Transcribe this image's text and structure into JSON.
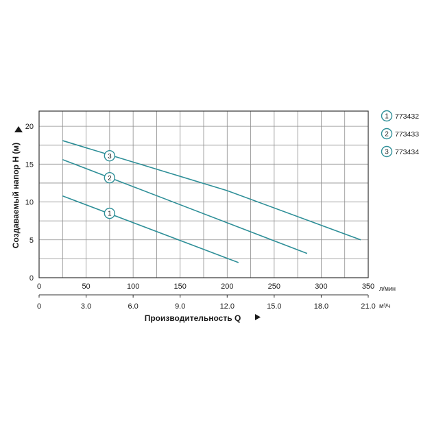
{
  "chart_data": {
    "type": "line",
    "ylabel": "Создаваемый напор H (м)",
    "xlabel": "Производительность Q",
    "x_unit": "л/мин",
    "x2_unit": "м³/ч",
    "xlim": [
      0,
      350
    ],
    "ylim": [
      0,
      22
    ],
    "x_ticks": [
      "0",
      "50",
      "100",
      "150",
      "200",
      "250",
      "300",
      "350"
    ],
    "x2_ticks": [
      "0",
      "3.0",
      "6.0",
      "9.0",
      "12.0",
      "15.0",
      "18.0",
      "21.0"
    ],
    "y_ticks": [
      "0",
      "5",
      "10",
      "15",
      "20"
    ],
    "grid": true,
    "legend_position": "right",
    "colors": {
      "line": "#2e8f98",
      "grid": "#8c8c8c",
      "axis": "#333333"
    },
    "series": [
      {
        "marker": "1",
        "name": "773432",
        "x": [
          25,
          212
        ],
        "y": [
          10.8,
          2.0
        ],
        "marker_at": {
          "x": 75,
          "y": 8.5
        }
      },
      {
        "marker": "2",
        "name": "773433",
        "x": [
          25,
          285
        ],
        "y": [
          15.6,
          3.2
        ],
        "marker_at": {
          "x": 75,
          "y": 13.2
        }
      },
      {
        "marker": "3",
        "name": "773434",
        "x": [
          25,
          200,
          342
        ],
        "y": [
          18.1,
          11.5,
          5.0
        ],
        "marker_at": {
          "x": 75,
          "y": 16.1
        }
      }
    ]
  }
}
